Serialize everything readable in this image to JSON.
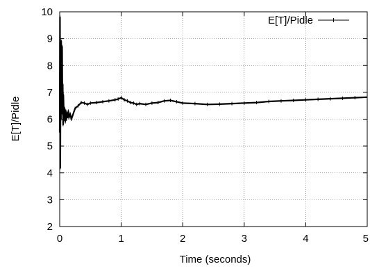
{
  "chart_data": {
    "type": "line",
    "title": "",
    "xlabel": "Time (seconds)",
    "ylabel": "E[T]/Pidle",
    "xlim": [
      0,
      5
    ],
    "ylim": [
      2,
      10
    ],
    "x_ticks": [
      "0",
      "1",
      "2",
      "3",
      "4",
      "5"
    ],
    "y_ticks": [
      "2",
      "3",
      "4",
      "5",
      "6",
      "7",
      "8",
      "9",
      "10"
    ],
    "grid": true,
    "legend_position": "top-right",
    "series": [
      {
        "name": "E[T]/Pidle",
        "color": "#000000",
        "x": [
          0.0,
          0.005,
          0.01,
          0.015,
          0.02,
          0.025,
          0.03,
          0.035,
          0.04,
          0.045,
          0.05,
          0.055,
          0.06,
          0.07,
          0.08,
          0.09,
          0.1,
          0.11,
          0.12,
          0.13,
          0.14,
          0.15,
          0.17,
          0.19,
          0.22,
          0.25,
          0.3,
          0.35,
          0.4,
          0.45,
          0.5,
          0.6,
          0.7,
          0.8,
          0.9,
          0.95,
          1.0,
          1.05,
          1.1,
          1.15,
          1.2,
          1.25,
          1.3,
          1.4,
          1.5,
          1.6,
          1.7,
          1.8,
          1.9,
          2.0,
          2.2,
          2.4,
          2.6,
          2.8,
          3.0,
          3.2,
          3.4,
          3.6,
          3.8,
          4.0,
          4.2,
          4.4,
          4.6,
          4.8,
          5.0
        ],
        "y": [
          5.5,
          9.8,
          4.2,
          8.0,
          6.0,
          8.9,
          7.8,
          6.5,
          8.7,
          6.2,
          7.3,
          5.8,
          6.9,
          6.0,
          6.4,
          5.9,
          6.3,
          6.0,
          6.2,
          6.1,
          6.3,
          6.05,
          6.2,
          6.0,
          6.2,
          6.4,
          6.5,
          6.62,
          6.6,
          6.55,
          6.6,
          6.62,
          6.65,
          6.68,
          6.72,
          6.75,
          6.8,
          6.72,
          6.68,
          6.62,
          6.6,
          6.55,
          6.58,
          6.55,
          6.6,
          6.62,
          6.68,
          6.7,
          6.65,
          6.6,
          6.58,
          6.55,
          6.56,
          6.58,
          6.6,
          6.62,
          6.66,
          6.68,
          6.7,
          6.72,
          6.74,
          6.76,
          6.78,
          6.8,
          6.82
        ]
      }
    ]
  }
}
